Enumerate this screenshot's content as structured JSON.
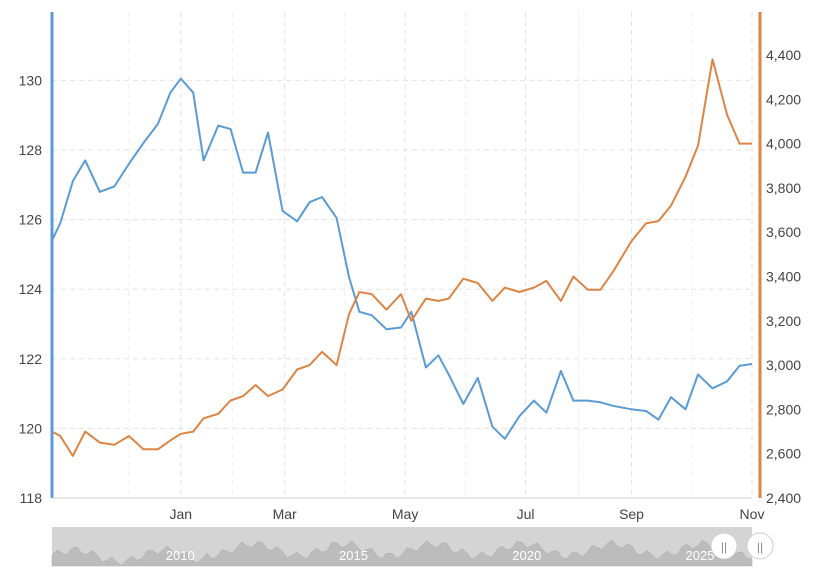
{
  "chart_data": {
    "type": "line",
    "title": "",
    "xlabel": "",
    "x_tick_labels": [
      "Jan",
      "Mar",
      "May",
      "Jul",
      "Sep",
      "Nov"
    ],
    "x_tick_positions": [
      10.5,
      13,
      15.9,
      18.8,
      21.35,
      24.25
    ],
    "x_range": [
      7.4,
      24.25
    ],
    "grid": true,
    "left_axis": {
      "ylim": [
        118,
        131.5
      ],
      "ticks": [
        118,
        120,
        122,
        124,
        126,
        128,
        130
      ],
      "tick_labels": [
        "118",
        "120",
        "122",
        "124",
        "126",
        "128",
        "130"
      ],
      "color": "#5b9bd5"
    },
    "right_axis": {
      "ylim": [
        2400,
        4600
      ],
      "ticks": [
        2400,
        2600,
        2800,
        3000,
        3200,
        3400,
        3600,
        3800,
        4000,
        4200,
        4400
      ],
      "tick_labels": [
        "2,400",
        "2,600",
        "2,800",
        "3,000",
        "3,200",
        "3,400",
        "3,600",
        "3,800",
        "4,000",
        "4,200",
        "4,400"
      ],
      "color": "#dd8444"
    },
    "series": [
      {
        "axis": "left",
        "color": "#5b9bd5",
        "x": [
          7.4,
          7.6,
          7.9,
          8.2,
          8.55,
          8.9,
          9.25,
          9.6,
          9.95,
          10.25,
          10.5,
          10.8,
          11.05,
          11.4,
          11.7,
          12.0,
          12.3,
          12.6,
          12.95,
          13.3,
          13.6,
          13.9,
          14.25,
          14.55,
          14.8,
          15.1,
          15.45,
          15.8,
          16.05,
          16.4,
          16.7,
          16.95,
          17.3,
          17.65,
          18.0,
          18.3,
          18.65,
          19.0,
          19.3,
          19.65,
          19.95,
          20.3,
          20.6,
          20.9,
          21.35,
          21.7,
          22.0,
          22.3,
          22.65,
          22.95,
          23.3,
          23.65,
          23.95,
          24.25
        ],
        "y": [
          125.4,
          125.9,
          127.1,
          127.7,
          126.8,
          126.95,
          127.6,
          128.2,
          128.75,
          129.65,
          130.05,
          129.65,
          127.7,
          128.7,
          128.6,
          127.35,
          127.35,
          128.5,
          126.25,
          125.95,
          126.5,
          126.65,
          126.05,
          124.35,
          123.35,
          123.25,
          122.85,
          122.9,
          123.35,
          121.75,
          122.1,
          121.55,
          120.7,
          121.45,
          120.05,
          119.7,
          120.35,
          120.8,
          120.45,
          121.65,
          120.8,
          120.8,
          120.75,
          120.65,
          120.55,
          120.5,
          120.25,
          120.9,
          120.55,
          121.55,
          121.15,
          121.35,
          121.8,
          121.85
        ]
      },
      {
        "axis": "right",
        "color": "#dd8444",
        "x": [
          7.4,
          7.6,
          7.9,
          8.2,
          8.55,
          8.9,
          9.25,
          9.6,
          9.95,
          10.25,
          10.5,
          10.8,
          11.05,
          11.4,
          11.7,
          12.0,
          12.3,
          12.6,
          12.95,
          13.3,
          13.6,
          13.9,
          14.25,
          14.55,
          14.8,
          15.1,
          15.45,
          15.8,
          16.05,
          16.4,
          16.7,
          16.95,
          17.3,
          17.65,
          18.0,
          18.3,
          18.65,
          19.0,
          19.3,
          19.65,
          19.95,
          20.3,
          20.6,
          20.9,
          21.35,
          21.7,
          22.0,
          22.3,
          22.65,
          22.95,
          23.3,
          23.65,
          23.95,
          24.25
        ],
        "y": [
          2700,
          2680,
          2590,
          2700,
          2650,
          2640,
          2680,
          2620,
          2620,
          2660,
          2690,
          2700,
          2760,
          2780,
          2840,
          2860,
          2910,
          2860,
          2890,
          2980,
          3000,
          3060,
          3000,
          3230,
          3330,
          3320,
          3250,
          3320,
          3200,
          3300,
          3290,
          3300,
          3390,
          3370,
          3290,
          3350,
          3330,
          3350,
          3380,
          3290,
          3400,
          3340,
          3340,
          3420,
          3560,
          3640,
          3650,
          3720,
          3850,
          3990,
          4380,
          4130,
          4000,
          4000
        ]
      }
    ],
    "navigator": {
      "labels": [
        "2010",
        "2015",
        "2020",
        "2025"
      ],
      "label_years": [
        2010,
        2015,
        2020,
        2025
      ],
      "year_range": [
        2006.3,
        2026.5
      ],
      "handle_glyph": "||"
    }
  }
}
